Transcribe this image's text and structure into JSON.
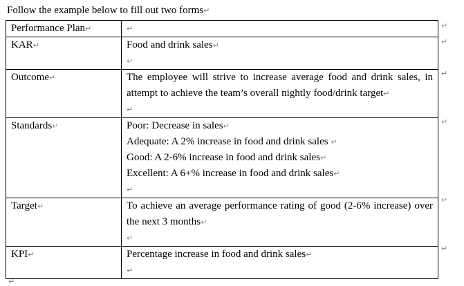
{
  "page": {
    "intro": "Follow the example below to fill out two forms",
    "paragraph_mark": "↵",
    "mark_color": "#808080",
    "text_color": "#000000",
    "background_color": "#ffffff"
  },
  "table": {
    "rows": [
      {
        "label": "Performance Plan",
        "paragraphs": [
          ""
        ]
      },
      {
        "label": "KAR",
        "paragraphs": [
          "Food and drink sales",
          ""
        ]
      },
      {
        "label": "Outcome",
        "paragraphs": [
          "The employee will strive to increase average food and drink sales, in attempt to achieve the team’s overall nightly food/drink target",
          ""
        ]
      },
      {
        "label": "Standards",
        "paragraphs": [
          "Poor: Decrease in sales",
          "Adequate: A 2% increase in food and drink sales ",
          "Good: A 2-6% increase in food and drink sales",
          "Excellent: A 6+% increase in food and drink sales",
          ""
        ]
      },
      {
        "label": "Target",
        "paragraphs": [
          "To achieve an average performance rating of good (2-6% increase) over the next 3 months",
          ""
        ]
      },
      {
        "label": "KPI",
        "paragraphs": [
          "Percentage increase in food and drink sales",
          ""
        ]
      }
    ]
  }
}
